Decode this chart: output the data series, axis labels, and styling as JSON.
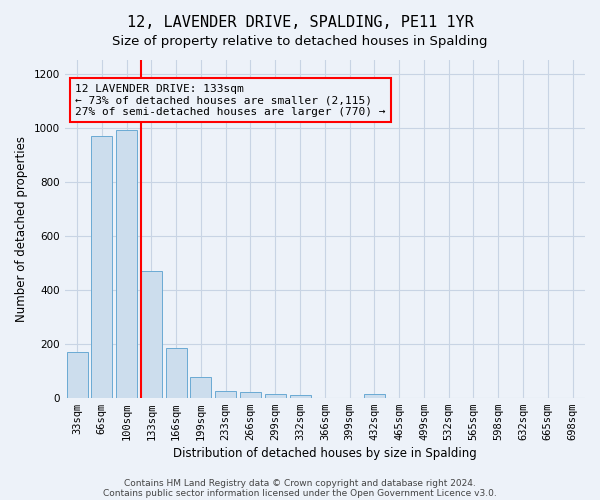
{
  "title": "12, LAVENDER DRIVE, SPALDING, PE11 1YR",
  "subtitle": "Size of property relative to detached houses in Spalding",
  "xlabel": "Distribution of detached houses by size in Spalding",
  "ylabel": "Number of detached properties",
  "footnote1": "Contains HM Land Registry data © Crown copyright and database right 2024.",
  "footnote2": "Contains public sector information licensed under the Open Government Licence v3.0.",
  "categories": [
    "33sqm",
    "66sqm",
    "100sqm",
    "133sqm",
    "166sqm",
    "199sqm",
    "233sqm",
    "266sqm",
    "299sqm",
    "332sqm",
    "366sqm",
    "399sqm",
    "432sqm",
    "465sqm",
    "499sqm",
    "532sqm",
    "565sqm",
    "598sqm",
    "632sqm",
    "665sqm",
    "698sqm"
  ],
  "values": [
    170,
    970,
    990,
    470,
    185,
    75,
    25,
    20,
    15,
    10,
    0,
    0,
    12,
    0,
    0,
    0,
    0,
    0,
    0,
    0,
    0
  ],
  "bar_color": "#ccdded",
  "bar_edge_color": "#6aaad4",
  "grid_color": "#c8d4e4",
  "bg_color": "#edf2f9",
  "red_line_index": 3,
  "annotation_line1": "12 LAVENDER DRIVE: 133sqm",
  "annotation_line2": "← 73% of detached houses are smaller (2,115)",
  "annotation_line3": "27% of semi-detached houses are larger (770) →",
  "ylim": [
    0,
    1250
  ],
  "yticks": [
    0,
    200,
    400,
    600,
    800,
    1000,
    1200
  ],
  "title_fontsize": 11,
  "subtitle_fontsize": 9.5,
  "annotation_fontsize": 8,
  "tick_fontsize": 7.5,
  "ylabel_fontsize": 8.5,
  "xlabel_fontsize": 8.5
}
